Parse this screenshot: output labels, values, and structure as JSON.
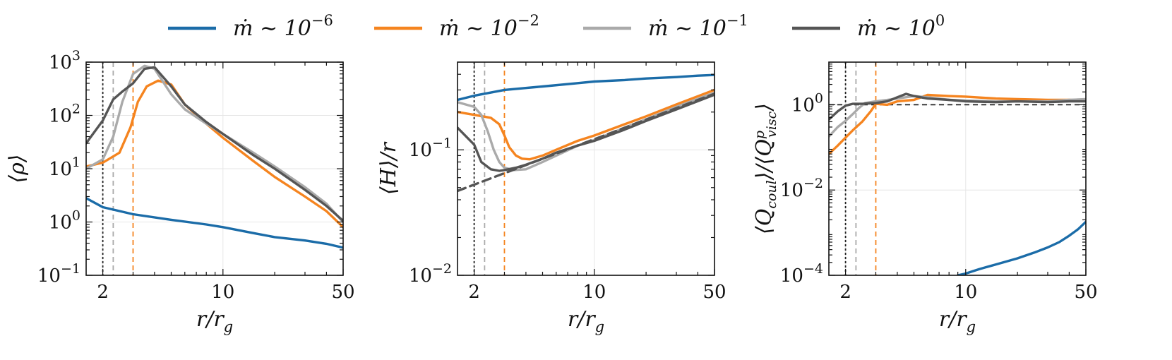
{
  "colors": {
    "blue": "#1b6ca8",
    "orange": "#f5841f",
    "lightgray": "#aaaaaa",
    "darkgray": "#555555",
    "reference_black": "#222222"
  },
  "legend": {
    "placement": "top-center",
    "entries": [
      {
        "label": "ṁ ∼ 10",
        "exponent": "−6",
        "color": "#1b6ca8"
      },
      {
        "label": "ṁ ∼ 10",
        "exponent": "−2",
        "color": "#f5841f"
      },
      {
        "label": "ṁ ∼ 10",
        "exponent": "−1",
        "color": "#aaaaaa"
      },
      {
        "label": "ṁ ∼ 10",
        "exponent": "0",
        "color": "#555555"
      }
    ]
  },
  "chart_data": [
    {
      "type": "line",
      "xscale": "log",
      "yscale": "log",
      "xlim": [
        1.6,
        50
      ],
      "ylim": [
        0.1,
        1000
      ],
      "grid": true,
      "xlabel": "r/r_g",
      "ylabel": "⟨ρ⟩",
      "xticks": [
        {
          "value": 2,
          "label": "2"
        },
        {
          "value": 10,
          "label": "10"
        },
        {
          "value": 50,
          "label": "50"
        }
      ],
      "yticks": [
        {
          "value": 0.1,
          "base": "10",
          "exp": "−1"
        },
        {
          "value": 1,
          "base": "10",
          "exp": "0"
        },
        {
          "value": 10,
          "base": "10",
          "exp": "1"
        },
        {
          "value": 100,
          "base": "10",
          "exp": "2"
        },
        {
          "value": 1000,
          "base": "10",
          "exp": "3"
        }
      ],
      "vlines": [
        {
          "x": 2.0,
          "color": "#222222",
          "dash": "dotted"
        },
        {
          "x": 2.3,
          "color": "#aaaaaa",
          "dash": "dashed"
        },
        {
          "x": 3.0,
          "color": "#f5841f",
          "dash": "dashed"
        }
      ],
      "hlines": [],
      "series": [
        {
          "color": "#1b6ca8",
          "x": [
            1.6,
            2,
            3,
            5,
            8,
            10,
            15,
            20,
            30,
            40,
            50
          ],
          "y": [
            2.8,
            1.9,
            1.4,
            1.1,
            0.9,
            0.8,
            0.62,
            0.52,
            0.45,
            0.39,
            0.33
          ]
        },
        {
          "color": "#f5841f",
          "x": [
            1.6,
            2,
            2.5,
            2.9,
            3.2,
            3.6,
            4.2,
            5,
            6,
            8,
            10,
            15,
            20,
            30,
            40,
            50
          ],
          "y": [
            11,
            13,
            20,
            60,
            180,
            350,
            450,
            380,
            160,
            70,
            38,
            14,
            7,
            3,
            1.6,
            0.8
          ]
        },
        {
          "color": "#aaaaaa",
          "x": [
            1.6,
            2,
            2.3,
            2.6,
            3,
            3.5,
            4,
            5,
            6,
            8,
            10,
            15,
            20,
            30,
            40,
            50
          ],
          "y": [
            10,
            15,
            40,
            180,
            600,
            850,
            750,
            250,
            130,
            70,
            45,
            20,
            11,
            4.5,
            2.2,
            1.0
          ]
        },
        {
          "color": "#555555",
          "x": [
            1.6,
            2,
            2.3,
            2.6,
            3,
            3.5,
            4,
            5,
            6,
            8,
            10,
            15,
            20,
            30,
            40,
            50
          ],
          "y": [
            30,
            80,
            200,
            280,
            400,
            750,
            800,
            350,
            160,
            75,
            45,
            18,
            10,
            4,
            2,
            1.05
          ]
        }
      ]
    },
    {
      "type": "line",
      "xscale": "log",
      "yscale": "log",
      "xlim": [
        1.6,
        50
      ],
      "ylim": [
        0.01,
        0.5
      ],
      "grid": true,
      "xlabel": "r/r_g",
      "ylabel": "⟨H⟩/r",
      "xticks": [
        {
          "value": 2,
          "label": "2"
        },
        {
          "value": 10,
          "label": "10"
        },
        {
          "value": 50,
          "label": "50"
        }
      ],
      "yticks": [
        {
          "value": 0.01,
          "base": "10",
          "exp": "−2"
        },
        {
          "value": 0.1,
          "base": "10",
          "exp": "−1"
        }
      ],
      "vlines": [
        {
          "x": 2.0,
          "color": "#222222",
          "dash": "dotted"
        },
        {
          "x": 2.3,
          "color": "#aaaaaa",
          "dash": "dashed"
        },
        {
          "x": 3.0,
          "color": "#f5841f",
          "dash": "dashed"
        }
      ],
      "hlines": [],
      "series": [
        {
          "color": "#1b6ca8",
          "x": [
            1.6,
            2,
            3,
            5,
            8,
            10,
            15,
            20,
            30,
            40,
            50
          ],
          "y": [
            0.25,
            0.27,
            0.3,
            0.32,
            0.34,
            0.35,
            0.36,
            0.37,
            0.38,
            0.39,
            0.395
          ]
        },
        {
          "color": "#f5841f",
          "x": [
            1.6,
            2,
            2.5,
            2.8,
            3,
            3.2,
            3.5,
            3.8,
            4.2,
            5,
            6,
            8,
            10,
            15,
            20,
            30,
            50
          ],
          "y": [
            0.2,
            0.19,
            0.18,
            0.16,
            0.13,
            0.105,
            0.09,
            0.085,
            0.084,
            0.09,
            0.1,
            0.118,
            0.13,
            0.16,
            0.185,
            0.23,
            0.3
          ]
        },
        {
          "color": "#aaaaaa",
          "x": [
            1.6,
            2,
            2.2,
            2.4,
            2.6,
            2.8,
            3,
            3.4,
            4,
            5,
            6,
            8,
            10,
            15,
            20,
            30,
            50
          ],
          "y": [
            0.24,
            0.22,
            0.19,
            0.14,
            0.1,
            0.08,
            0.072,
            0.069,
            0.07,
            0.08,
            0.09,
            0.108,
            0.12,
            0.15,
            0.175,
            0.22,
            0.285
          ]
        },
        {
          "color": "#555555",
          "x": [
            1.6,
            2,
            2.2,
            2.5,
            2.8,
            3,
            3.5,
            4,
            5,
            6,
            8,
            10,
            15,
            20,
            30,
            50
          ],
          "y": [
            0.15,
            0.11,
            0.08,
            0.07,
            0.068,
            0.069,
            0.072,
            0.076,
            0.085,
            0.095,
            0.108,
            0.118,
            0.145,
            0.17,
            0.21,
            0.275
          ]
        },
        {
          "color": "#555555",
          "dash": "dashed",
          "x": [
            1.6,
            50
          ],
          "y": [
            0.047,
            0.28
          ]
        }
      ]
    },
    {
      "type": "line",
      "xscale": "log",
      "yscale": "log",
      "xlim": [
        1.6,
        50
      ],
      "ylim": [
        0.0001,
        10
      ],
      "grid": true,
      "xlabel": "r/r_g",
      "ylabel": "⟨Q_coul⟩/⟨Q^p_visc⟩",
      "xticks": [
        {
          "value": 2,
          "label": "2"
        },
        {
          "value": 10,
          "label": "10"
        },
        {
          "value": 50,
          "label": "50"
        }
      ],
      "yticks": [
        {
          "value": 0.0001,
          "base": "10",
          "exp": "−4"
        },
        {
          "value": 0.01,
          "base": "10",
          "exp": "−2"
        },
        {
          "value": 1,
          "base": "10",
          "exp": "0"
        }
      ],
      "vlines": [
        {
          "x": 2.0,
          "color": "#222222",
          "dash": "dotted"
        },
        {
          "x": 2.3,
          "color": "#aaaaaa",
          "dash": "dashed"
        },
        {
          "x": 3.0,
          "color": "#f5841f",
          "dash": "dashed"
        }
      ],
      "hlines": [
        {
          "y": 1.0,
          "color": "#222222",
          "dash": "dashed"
        }
      ],
      "series": [
        {
          "color": "#1b6ca8",
          "x": [
            9,
            10,
            12,
            15,
            20,
            25,
            30,
            35,
            40,
            45,
            50
          ],
          "y": [
            0.0001,
            0.00011,
            0.00014,
            0.00018,
            0.00025,
            0.00034,
            0.00045,
            0.0006,
            0.00085,
            0.0012,
            0.0018
          ]
        },
        {
          "color": "#f5841f",
          "x": [
            1.6,
            1.8,
            2,
            2.2,
            2.5,
            2.8,
            3,
            3.5,
            4,
            5,
            6,
            8,
            10,
            15,
            20,
            30,
            40,
            50
          ],
          "y": [
            0.07,
            0.11,
            0.17,
            0.25,
            0.4,
            0.7,
            1.05,
            1.0,
            1.2,
            1.3,
            1.7,
            1.6,
            1.55,
            1.4,
            1.35,
            1.3,
            1.3,
            1.25
          ]
        },
        {
          "color": "#aaaaaa",
          "x": [
            1.6,
            1.8,
            2,
            2.2,
            2.4,
            2.6,
            3,
            3.5,
            4,
            5,
            6,
            8,
            10,
            15,
            20,
            30,
            40,
            50
          ],
          "y": [
            0.18,
            0.3,
            0.42,
            0.6,
            0.85,
            1.1,
            1.2,
            1.3,
            1.4,
            1.6,
            1.5,
            1.3,
            1.25,
            1.2,
            1.2,
            1.2,
            1.3,
            1.35
          ]
        },
        {
          "color": "#555555",
          "x": [
            1.6,
            1.8,
            2,
            2.2,
            2.5,
            3,
            3.5,
            4,
            4.5,
            5,
            6,
            8,
            10,
            15,
            20,
            30,
            40,
            50
          ],
          "y": [
            0.45,
            0.7,
            0.95,
            1.05,
            1.05,
            1.1,
            1.2,
            1.5,
            1.8,
            1.6,
            1.4,
            1.3,
            1.2,
            1.15,
            1.2,
            1.15,
            1.2,
            1.2
          ]
        }
      ]
    }
  ]
}
